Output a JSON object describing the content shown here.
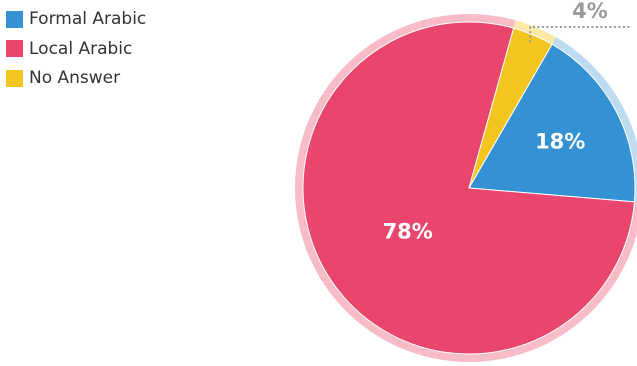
{
  "chart_data": {
    "type": "pie",
    "categories": [
      "Formal Arabic",
      "Local Arabic",
      "No Answer"
    ],
    "values": [
      18,
      78,
      4
    ],
    "value_labels": [
      "18%",
      "78%",
      "4%"
    ],
    "colors": [
      "#3491d4",
      "#ea466d",
      "#f2c61f"
    ],
    "ring_colors": [
      "#bddcf2",
      "#f7bcc8",
      "#fbe9a5"
    ],
    "legend_position": "top-left",
    "title": "",
    "start_angle_deg": 30,
    "direction": "clockwise"
  }
}
